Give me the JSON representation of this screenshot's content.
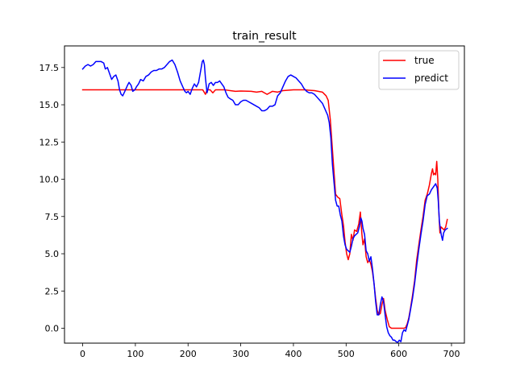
{
  "chart_data": {
    "type": "line",
    "title": "train_result",
    "xlabel": "",
    "ylabel": "",
    "xlim": [
      -34.5,
      724.5
    ],
    "ylim": [
      -1.0,
      18.95
    ],
    "xticks": [
      0,
      100,
      200,
      300,
      400,
      500,
      600,
      700
    ],
    "xtick_labels": [
      "0",
      "100",
      "200",
      "300",
      "400",
      "500",
      "600",
      "700"
    ],
    "yticks": [
      0.0,
      2.5,
      5.0,
      7.5,
      10.0,
      12.5,
      15.0,
      17.5
    ],
    "ytick_labels": [
      "0.0",
      "2.5",
      "5.0",
      "7.5",
      "10.0",
      "12.5",
      "15.0",
      "17.5"
    ],
    "grid": false,
    "legend_position": "upper right",
    "series": [
      {
        "name": "true",
        "color": "#ff0000",
        "points": [
          [
            0,
            16.0
          ],
          [
            100,
            16.0
          ],
          [
            200,
            16.0
          ],
          [
            228,
            16.0
          ],
          [
            233,
            15.7
          ],
          [
            236,
            16.0
          ],
          [
            242,
            16.0
          ],
          [
            247,
            15.8
          ],
          [
            252,
            16.0
          ],
          [
            270,
            16.0
          ],
          [
            280,
            15.95
          ],
          [
            290,
            15.9
          ],
          [
            300,
            15.92
          ],
          [
            320,
            15.9
          ],
          [
            330,
            15.85
          ],
          [
            340,
            15.9
          ],
          [
            350,
            15.7
          ],
          [
            360,
            15.9
          ],
          [
            370,
            15.85
          ],
          [
            380,
            15.95
          ],
          [
            400,
            16.0
          ],
          [
            420,
            16.0
          ],
          [
            440,
            15.95
          ],
          [
            455,
            15.85
          ],
          [
            462,
            15.6
          ],
          [
            466,
            15.3
          ],
          [
            470,
            14.0
          ],
          [
            474,
            12.0
          ],
          [
            477,
            10.5
          ],
          [
            480,
            9.0
          ],
          [
            484,
            8.8
          ],
          [
            488,
            8.7
          ],
          [
            492,
            7.6
          ],
          [
            495,
            6.9
          ],
          [
            498,
            5.8
          ],
          [
            501,
            5.0
          ],
          [
            504,
            4.6
          ],
          [
            507,
            5.0
          ],
          [
            510,
            6.3
          ],
          [
            513,
            5.9
          ],
          [
            516,
            6.6
          ],
          [
            520,
            6.5
          ],
          [
            524,
            7.0
          ],
          [
            527,
            7.8
          ],
          [
            530,
            6.3
          ],
          [
            532,
            5.6
          ],
          [
            535,
            6.0
          ],
          [
            538,
            4.8
          ],
          [
            541,
            4.4
          ],
          [
            544,
            4.6
          ],
          [
            547,
            4.3
          ],
          [
            550,
            3.8
          ],
          [
            553,
            3.0
          ],
          [
            556,
            2.0
          ],
          [
            559,
            1.2
          ],
          [
            562,
            0.9
          ],
          [
            565,
            1.0
          ],
          [
            568,
            1.6
          ],
          [
            571,
            2.0
          ],
          [
            574,
            1.2
          ],
          [
            578,
            0.6
          ],
          [
            582,
            0.1
          ],
          [
            586,
            0.0
          ],
          [
            600,
            0.0
          ],
          [
            610,
            0.0
          ],
          [
            613,
            0.05
          ],
          [
            616,
            0.3
          ],
          [
            619,
            0.7
          ],
          [
            622,
            1.3
          ],
          [
            626,
            2.2
          ],
          [
            630,
            3.2
          ],
          [
            634,
            4.6
          ],
          [
            638,
            5.6
          ],
          [
            642,
            6.6
          ],
          [
            646,
            7.5
          ],
          [
            650,
            8.6
          ],
          [
            654,
            9.0
          ],
          [
            658,
            9.6
          ],
          [
            662,
            10.4
          ],
          [
            664,
            10.7
          ],
          [
            666,
            10.3
          ],
          [
            668,
            10.4
          ],
          [
            670,
            10.3
          ],
          [
            672,
            11.2
          ],
          [
            674,
            10.0
          ],
          [
            676,
            7.8
          ],
          [
            678,
            6.4
          ],
          [
            680,
            6.8
          ],
          [
            683,
            6.7
          ],
          [
            686,
            6.6
          ],
          [
            689,
            6.8
          ],
          [
            692,
            7.3
          ]
        ]
      },
      {
        "name": "predict",
        "color": "#0000ff",
        "points": [
          [
            0,
            17.4
          ],
          [
            5,
            17.6
          ],
          [
            10,
            17.7
          ],
          [
            15,
            17.6
          ],
          [
            20,
            17.7
          ],
          [
            25,
            17.9
          ],
          [
            30,
            17.9
          ],
          [
            35,
            17.9
          ],
          [
            40,
            17.8
          ],
          [
            43,
            17.4
          ],
          [
            47,
            17.5
          ],
          [
            51,
            17.1
          ],
          [
            55,
            16.7
          ],
          [
            59,
            16.9
          ],
          [
            63,
            17.0
          ],
          [
            67,
            16.6
          ],
          [
            70,
            16.0
          ],
          [
            73,
            15.7
          ],
          [
            76,
            15.6
          ],
          [
            80,
            15.9
          ],
          [
            85,
            16.3
          ],
          [
            88,
            16.5
          ],
          [
            92,
            16.3
          ],
          [
            95,
            15.9
          ],
          [
            99,
            16.0
          ],
          [
            102,
            16.2
          ],
          [
            106,
            16.4
          ],
          [
            110,
            16.7
          ],
          [
            115,
            16.6
          ],
          [
            120,
            16.9
          ],
          [
            125,
            17.0
          ],
          [
            130,
            17.2
          ],
          [
            135,
            17.3
          ],
          [
            140,
            17.3
          ],
          [
            145,
            17.4
          ],
          [
            150,
            17.4
          ],
          [
            155,
            17.5
          ],
          [
            160,
            17.7
          ],
          [
            165,
            17.9
          ],
          [
            170,
            18.0
          ],
          [
            175,
            17.7
          ],
          [
            180,
            17.2
          ],
          [
            185,
            16.6
          ],
          [
            190,
            16.2
          ],
          [
            194,
            15.9
          ],
          [
            197,
            15.8
          ],
          [
            200,
            15.9
          ],
          [
            204,
            15.7
          ],
          [
            208,
            16.1
          ],
          [
            212,
            16.4
          ],
          [
            216,
            16.2
          ],
          [
            220,
            16.5
          ],
          [
            224,
            17.3
          ],
          [
            227,
            17.9
          ],
          [
            229,
            18.0
          ],
          [
            231,
            17.7
          ],
          [
            233,
            16.8
          ],
          [
            236,
            15.8
          ],
          [
            240,
            16.4
          ],
          [
            244,
            16.5
          ],
          [
            248,
            16.3
          ],
          [
            252,
            16.5
          ],
          [
            256,
            16.5
          ],
          [
            260,
            16.6
          ],
          [
            264,
            16.4
          ],
          [
            268,
            16.2
          ],
          [
            272,
            15.8
          ],
          [
            276,
            15.5
          ],
          [
            280,
            15.4
          ],
          [
            285,
            15.3
          ],
          [
            290,
            15.0
          ],
          [
            295,
            15.0
          ],
          [
            300,
            15.2
          ],
          [
            305,
            15.3
          ],
          [
            310,
            15.3
          ],
          [
            315,
            15.2
          ],
          [
            320,
            15.1
          ],
          [
            325,
            15.0
          ],
          [
            330,
            14.9
          ],
          [
            335,
            14.8
          ],
          [
            340,
            14.6
          ],
          [
            345,
            14.6
          ],
          [
            350,
            14.7
          ],
          [
            355,
            14.9
          ],
          [
            360,
            14.9
          ],
          [
            365,
            15.0
          ],
          [
            370,
            15.6
          ],
          [
            375,
            15.8
          ],
          [
            380,
            16.2
          ],
          [
            385,
            16.6
          ],
          [
            390,
            16.9
          ],
          [
            395,
            17.0
          ],
          [
            400,
            16.9
          ],
          [
            405,
            16.8
          ],
          [
            410,
            16.6
          ],
          [
            415,
            16.4
          ],
          [
            420,
            16.1
          ],
          [
            425,
            15.9
          ],
          [
            430,
            15.8
          ],
          [
            435,
            15.8
          ],
          [
            440,
            15.7
          ],
          [
            445,
            15.5
          ],
          [
            450,
            15.3
          ],
          [
            455,
            15.1
          ],
          [
            460,
            14.7
          ],
          [
            465,
            14.3
          ],
          [
            468,
            13.8
          ],
          [
            471,
            12.8
          ],
          [
            474,
            11.0
          ],
          [
            477,
            9.8
          ],
          [
            480,
            8.6
          ],
          [
            483,
            8.2
          ],
          [
            486,
            8.2
          ],
          [
            489,
            7.6
          ],
          [
            492,
            7.2
          ],
          [
            495,
            6.2
          ],
          [
            498,
            5.6
          ],
          [
            501,
            5.3
          ],
          [
            504,
            5.2
          ],
          [
            507,
            5.1
          ],
          [
            510,
            5.5
          ],
          [
            513,
            6.0
          ],
          [
            516,
            6.2
          ],
          [
            519,
            6.3
          ],
          [
            522,
            6.4
          ],
          [
            525,
            6.8
          ],
          [
            528,
            7.4
          ],
          [
            530,
            7.2
          ],
          [
            532,
            6.7
          ],
          [
            535,
            6.3
          ],
          [
            538,
            5.2
          ],
          [
            541,
            5.0
          ],
          [
            544,
            4.5
          ],
          [
            547,
            4.8
          ],
          [
            550,
            4.0
          ],
          [
            553,
            3.0
          ],
          [
            556,
            1.8
          ],
          [
            559,
            0.9
          ],
          [
            562,
            0.9
          ],
          [
            565,
            1.6
          ],
          [
            568,
            2.1
          ],
          [
            571,
            1.8
          ],
          [
            574,
            0.9
          ],
          [
            577,
            0.1
          ],
          [
            580,
            -0.3
          ],
          [
            583,
            -0.5
          ],
          [
            586,
            -0.6
          ],
          [
            589,
            -0.8
          ],
          [
            592,
            -0.8
          ],
          [
            595,
            -0.9
          ],
          [
            598,
            -0.95
          ],
          [
            601,
            -0.8
          ],
          [
            604,
            -0.9
          ],
          [
            607,
            -0.3
          ],
          [
            610,
            -0.1
          ],
          [
            613,
            -0.2
          ],
          [
            616,
            0.2
          ],
          [
            619,
            0.6
          ],
          [
            622,
            1.2
          ],
          [
            626,
            2.0
          ],
          [
            630,
            3.0
          ],
          [
            634,
            4.2
          ],
          [
            638,
            5.3
          ],
          [
            642,
            6.3
          ],
          [
            646,
            7.2
          ],
          [
            650,
            8.3
          ],
          [
            654,
            8.9
          ],
          [
            658,
            9.0
          ],
          [
            662,
            9.3
          ],
          [
            666,
            9.5
          ],
          [
            670,
            9.7
          ],
          [
            673,
            9.4
          ],
          [
            675,
            8.5
          ],
          [
            677,
            7.2
          ],
          [
            679,
            6.6
          ],
          [
            681,
            6.2
          ],
          [
            683,
            5.9
          ],
          [
            685,
            6.4
          ],
          [
            688,
            6.6
          ],
          [
            692,
            6.7
          ]
        ]
      }
    ]
  }
}
